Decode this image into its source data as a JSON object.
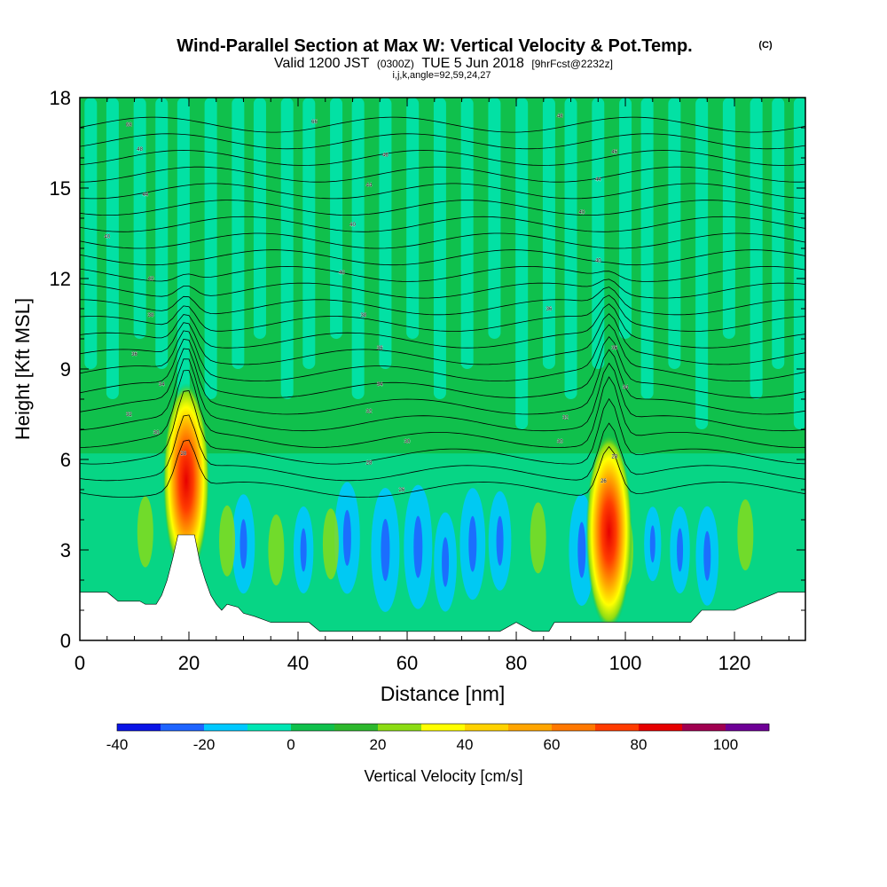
{
  "chart_data": {
    "type": "heatmap",
    "title": "Wind-Parallel Section at Max W: Vertical Velocity & Pot.Temp.",
    "title_mark": "(C)",
    "subtitle_parts": [
      "Valid 1200 JST",
      "(0300Z)",
      "TUE 5 Jun 2018",
      "[9hrFcst@2232z]"
    ],
    "subtitle2": "i,j,k,angle=92,59,24,27",
    "xlabel": "Distance [nm]",
    "ylabel": "Height [Kft MSL]",
    "xlim": [
      0,
      133
    ],
    "ylim": [
      0,
      18
    ],
    "xticks": [
      0,
      20,
      40,
      60,
      80,
      100,
      120
    ],
    "yticks": [
      0,
      3,
      6,
      9,
      12,
      15,
      18
    ],
    "colorbar": {
      "label": "Vertical Velocity [cm/s]",
      "min": -40,
      "max": 110,
      "step": 10,
      "ticks": [
        -40,
        -20,
        0,
        20,
        40,
        60,
        80,
        100
      ],
      "colors": [
        "#0a14e6",
        "#1e64ff",
        "#00c8ff",
        "#00e6b4",
        "#10c04c",
        "#2db82d",
        "#8cdc14",
        "#ffff00",
        "#ffd200",
        "#ffa500",
        "#ff7800",
        "#ff3c00",
        "#e60000",
        "#a00050",
        "#6e0096"
      ]
    },
    "terrain": {
      "x": [
        0,
        5,
        7,
        11,
        12,
        14,
        15,
        16,
        17,
        18,
        21,
        22,
        23,
        24,
        25,
        26,
        27,
        29,
        30,
        32,
        35,
        39,
        42,
        44,
        47,
        50,
        55,
        60,
        65,
        70,
        77,
        80,
        83,
        86,
        87,
        91,
        98,
        105,
        112,
        114,
        120,
        124,
        128,
        133
      ],
      "y": [
        1.6,
        1.6,
        1.3,
        1.3,
        1.2,
        1.2,
        1.5,
        2.0,
        2.7,
        3.5,
        3.5,
        2.6,
        2.0,
        1.5,
        1.2,
        1.0,
        1.2,
        1.1,
        0.9,
        0.8,
        0.6,
        0.6,
        0.6,
        0.3,
        0.3,
        0.3,
        0.3,
        0.3,
        0.3,
        0.3,
        0.3,
        0.6,
        0.3,
        0.3,
        0.6,
        0.6,
        0.6,
        0.6,
        0.6,
        1.0,
        1.0,
        1.3,
        1.6,
        1.6
      ]
    },
    "updrafts": [
      {
        "x": 19.5,
        "y": 5.3,
        "w_max": 90
      },
      {
        "x": 97,
        "y": 3.6,
        "w_max": 95
      }
    ],
    "theta_contour_labels": [
      {
        "x": 9,
        "y": 17.1,
        "text": "68"
      },
      {
        "x": 43,
        "y": 17.2,
        "text": "66"
      },
      {
        "x": 88,
        "y": 17.4,
        "text": "48"
      },
      {
        "x": 11,
        "y": 16.3,
        "text": "48"
      },
      {
        "x": 56,
        "y": 16.1,
        "text": "46"
      },
      {
        "x": 98,
        "y": 16.2,
        "text": "46"
      },
      {
        "x": 12,
        "y": 14.8,
        "text": "44"
      },
      {
        "x": 53,
        "y": 15.1,
        "text": "44"
      },
      {
        "x": 95,
        "y": 15.3,
        "text": "44"
      },
      {
        "x": 5,
        "y": 13.4,
        "text": "40"
      },
      {
        "x": 50,
        "y": 13.8,
        "text": "40"
      },
      {
        "x": 92,
        "y": 14.2,
        "text": "40"
      },
      {
        "x": 13,
        "y": 12.0,
        "text": "40"
      },
      {
        "x": 48,
        "y": 12.2,
        "text": "40"
      },
      {
        "x": 95,
        "y": 12.6,
        "text": "40"
      },
      {
        "x": 13,
        "y": 10.8,
        "text": "38"
      },
      {
        "x": 52,
        "y": 10.8,
        "text": "38"
      },
      {
        "x": 86,
        "y": 11.0,
        "text": "36"
      },
      {
        "x": 10,
        "y": 9.5,
        "text": "36"
      },
      {
        "x": 55,
        "y": 9.7,
        "text": "36"
      },
      {
        "x": 98,
        "y": 9.7,
        "text": "36"
      },
      {
        "x": 15,
        "y": 8.5,
        "text": "34"
      },
      {
        "x": 55,
        "y": 8.5,
        "text": "34"
      },
      {
        "x": 100,
        "y": 8.4,
        "text": "34"
      },
      {
        "x": 9,
        "y": 7.5,
        "text": "32"
      },
      {
        "x": 53,
        "y": 7.6,
        "text": "32"
      },
      {
        "x": 89,
        "y": 7.4,
        "text": "32"
      },
      {
        "x": 14,
        "y": 6.9,
        "text": "30"
      },
      {
        "x": 60,
        "y": 6.6,
        "text": "30"
      },
      {
        "x": 88,
        "y": 6.6,
        "text": "30"
      },
      {
        "x": 19,
        "y": 6.2,
        "text": "28"
      },
      {
        "x": 53,
        "y": 5.9,
        "text": "28"
      },
      {
        "x": 98,
        "y": 6.1,
        "text": "28"
      },
      {
        "x": 59,
        "y": 5.0,
        "text": "26"
      },
      {
        "x": 96,
        "y": 5.3,
        "text": "26"
      }
    ]
  }
}
